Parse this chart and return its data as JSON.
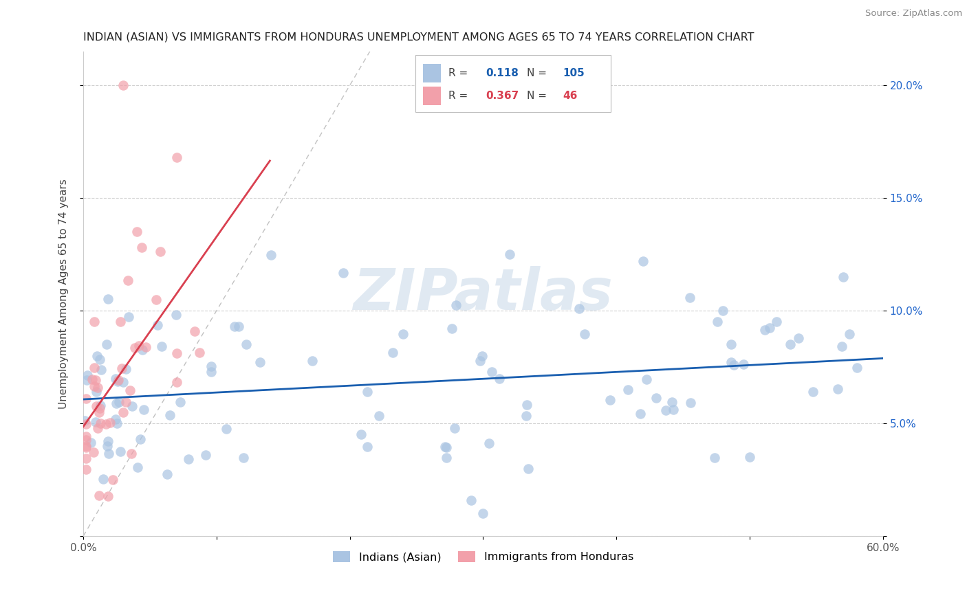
{
  "title": "INDIAN (ASIAN) VS IMMIGRANTS FROM HONDURAS UNEMPLOYMENT AMONG AGES 65 TO 74 YEARS CORRELATION CHART",
  "source": "Source: ZipAtlas.com",
  "ylabel": "Unemployment Among Ages 65 to 74 years",
  "xmin": 0.0,
  "xmax": 0.6,
  "ymin": 0.0,
  "ymax": 0.215,
  "yticks": [
    0.0,
    0.05,
    0.1,
    0.15,
    0.2
  ],
  "xticks": [
    0.0,
    0.1,
    0.2,
    0.3,
    0.4,
    0.5,
    0.6
  ],
  "legend_label1": "Indians (Asian)",
  "legend_label2": "Immigrants from Honduras",
  "legend_R1_val": "0.118",
  "legend_N1_val": "105",
  "legend_R2_val": "0.367",
  "legend_N2_val": "46",
  "color_blue": "#aac4e2",
  "color_pink": "#f2a0aa",
  "color_blue_line": "#1a5fb0",
  "color_pink_line": "#d94050",
  "color_diag_line": "#bbbbbb",
  "watermark": "ZIPatlas"
}
